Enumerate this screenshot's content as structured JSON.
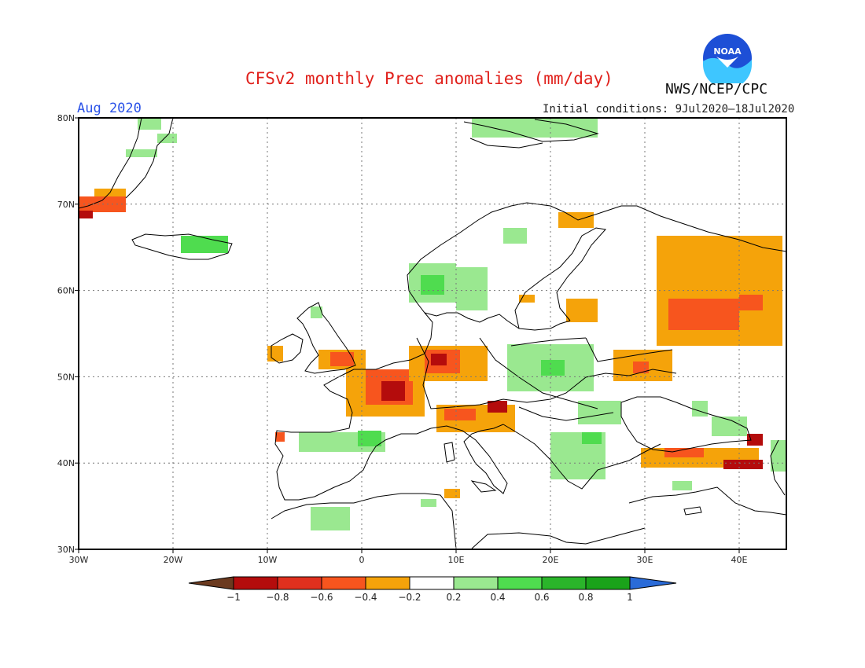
{
  "header": {
    "title": "CFSv2 monthly Prec anomalies (mm/day)",
    "period": "Aug 2020",
    "initial_conditions": "Initial conditions: 9Jul2020–18Jul2020",
    "agency": "NWS/NCEP/CPC",
    "logo_text": "NOAA"
  },
  "map": {
    "lon_range": [
      -30,
      45
    ],
    "lat_range": [
      30,
      80
    ],
    "x_ticks": [
      "30W",
      "20W",
      "10W",
      "0",
      "10E",
      "20E",
      "30E",
      "40E"
    ],
    "y_ticks": [
      "30N",
      "40N",
      "50N",
      "60N",
      "70N",
      "80N"
    ],
    "grid": "dotted"
  },
  "colorbar": {
    "labels": [
      "−1",
      "−0.8",
      "−0.6",
      "−0.4",
      "−0.2",
      "0.2",
      "0.4",
      "0.6",
      "0.8",
      "1"
    ],
    "colors": [
      "#6b3a1f",
      "#b40c0c",
      "#e0301e",
      "#f7551e",
      "#f5a30a",
      "#ffffff",
      "#9ae890",
      "#4fdc4f",
      "#2ab52a",
      "#1aa31a",
      "#2a6bd8"
    ]
  },
  "colors": {
    "title": "#e0201b",
    "period": "#2a52e8",
    "wet_light": "#9ae890",
    "wet_mid": "#4fdc4f",
    "wet_strong": "#2ab52a",
    "dry_light": "#f5a30a",
    "dry_mid": "#f7551e",
    "dry_strong": "#e0301e",
    "dry_extreme": "#b40c0c"
  }
}
